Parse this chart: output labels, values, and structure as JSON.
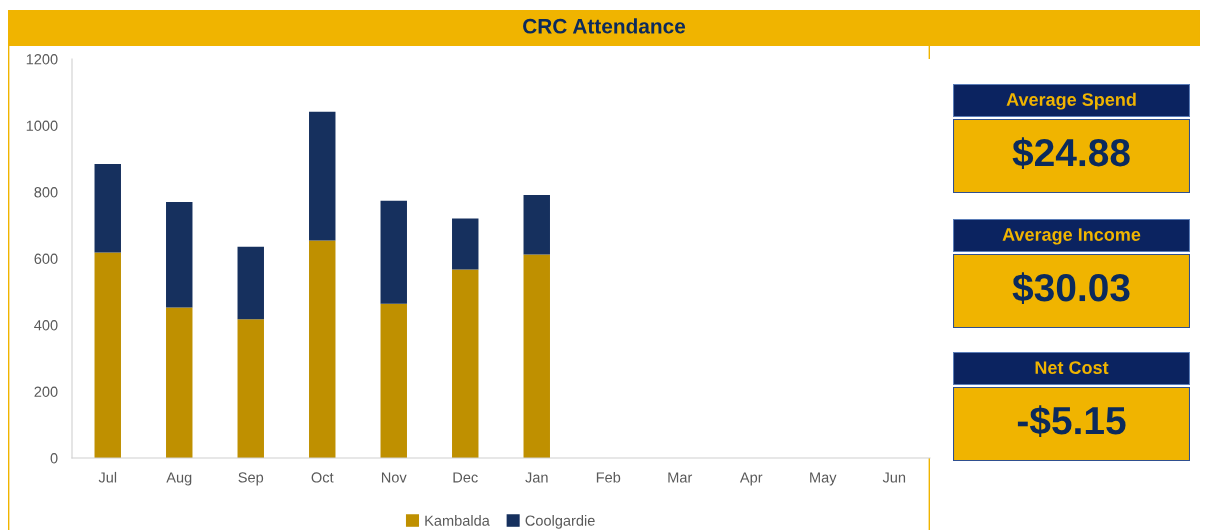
{
  "chart_data": [
    {
      "type": "bar",
      "title": "CRC Attendance",
      "stacked": true,
      "categories": [
        "Jul",
        "Aug",
        "Sep",
        "Oct",
        "Nov",
        "Dec",
        "Jan",
        "Feb",
        "Mar",
        "Apr",
        "May",
        "Jun"
      ],
      "series": [
        {
          "name": "Kambalda",
          "color": "#bf9000",
          "values": [
            618,
            453,
            417,
            654,
            464,
            567,
            612,
            null,
            null,
            null,
            null,
            null
          ]
        },
        {
          "name": "Coolgardie",
          "color": "#16305e",
          "values": [
            266,
            317,
            218,
            387,
            310,
            153,
            179,
            null,
            null,
            null,
            null,
            null
          ]
        }
      ],
      "ylim": [
        0,
        1200
      ],
      "yticks": [
        0,
        200,
        400,
        600,
        800,
        1000,
        1200
      ],
      "grid": false,
      "legend": "bottom"
    },
    {
      "type": "other",
      "annotations": [
        "Average Spend",
        "$24.88",
        "Average Income",
        "$30.03",
        "Net Cost",
        "-$5.15"
      ]
    }
  ]
}
